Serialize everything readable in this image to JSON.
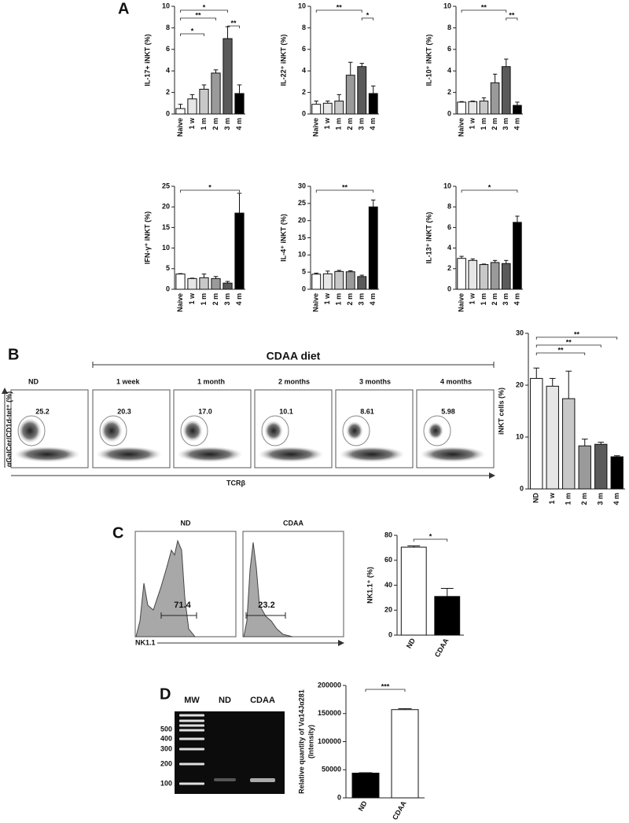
{
  "panel_labels": [
    "A",
    "B",
    "C",
    "D"
  ],
  "chart_data": [
    {
      "type": "bar",
      "y_label": "IL-17+ iNKT (%)",
      "categories": [
        "Naive",
        "1 w",
        "1 m",
        "2 m",
        "3 m",
        "4 m"
      ],
      "values": [
        0.5,
        1.4,
        2.3,
        3.8,
        7.0,
        1.9
      ],
      "errors": [
        0.4,
        0.4,
        0.4,
        0.3,
        1.1,
        0.8
      ],
      "colors": [
        "#ffffff",
        "#e6e6e6",
        "#c8c8c8",
        "#9a9a9a",
        "#5a5a5a",
        "#000000"
      ],
      "ylim": [
        0,
        10
      ],
      "yticks": [
        0,
        2,
        4,
        6,
        8,
        10
      ],
      "annotations": [
        {
          "text": "*",
          "span": [
            "Naive",
            "3 m"
          ]
        },
        {
          "text": "**",
          "span": [
            "Naive",
            "2 m"
          ]
        },
        {
          "text": "**",
          "span": [
            "3 m",
            "4 m"
          ]
        },
        {
          "text": "*",
          "span": [
            "Naive",
            "1 m"
          ]
        }
      ]
    },
    {
      "type": "bar",
      "y_label": "IL-22⁺ iNKT (%)",
      "categories": [
        "Naive",
        "1 w",
        "1 m",
        "2 m",
        "3 m",
        "4 m"
      ],
      "values": [
        0.9,
        1.0,
        1.2,
        3.6,
        4.4,
        1.9
      ],
      "errors": [
        0.3,
        0.2,
        0.6,
        1.2,
        0.3,
        0.7
      ],
      "colors": [
        "#ffffff",
        "#e6e6e6",
        "#c8c8c8",
        "#9a9a9a",
        "#5a5a5a",
        "#000000"
      ],
      "ylim": [
        0,
        10
      ],
      "yticks": [
        0,
        2,
        4,
        6,
        8,
        10
      ],
      "annotations": [
        {
          "text": "**",
          "span": [
            "Naive",
            "3 m"
          ]
        },
        {
          "text": "*",
          "span": [
            "3 m",
            "4 m"
          ]
        }
      ]
    },
    {
      "type": "bar",
      "y_label": "IL-10⁺ iNKT (%)",
      "categories": [
        "Naive",
        "1 w",
        "1 m",
        "2 m",
        "3 m",
        "4 m"
      ],
      "values": [
        1.1,
        1.15,
        1.2,
        2.9,
        4.4,
        0.8
      ],
      "errors": [
        0.05,
        0.05,
        0.3,
        0.8,
        0.7,
        0.3
      ],
      "colors": [
        "#ffffff",
        "#e6e6e6",
        "#c8c8c8",
        "#9a9a9a",
        "#5a5a5a",
        "#000000"
      ],
      "ylim": [
        0,
        10
      ],
      "yticks": [
        0,
        2,
        4,
        6,
        8,
        10
      ],
      "annotations": [
        {
          "text": "**",
          "span": [
            "Naive",
            "3 m"
          ]
        },
        {
          "text": "**",
          "span": [
            "3 m",
            "4 m"
          ]
        }
      ]
    },
    {
      "type": "bar",
      "y_label": "IFN-γ⁺ iNKT (%)",
      "categories": [
        "Naive",
        "1 w",
        "1 m",
        "2 m",
        "3 m",
        "4 m"
      ],
      "values": [
        3.7,
        2.6,
        2.8,
        2.6,
        1.5,
        18.5
      ],
      "errors": [
        0.1,
        0.1,
        0.9,
        0.5,
        0.4,
        4.8
      ],
      "colors": [
        "#ffffff",
        "#e6e6e6",
        "#c8c8c8",
        "#9a9a9a",
        "#5a5a5a",
        "#000000"
      ],
      "ylim": [
        0,
        25
      ],
      "yticks": [
        0,
        5,
        10,
        15,
        20,
        25
      ],
      "annotations": [
        {
          "text": "*",
          "span": [
            "Naive",
            "4 m"
          ]
        }
      ]
    },
    {
      "type": "bar",
      "y_label": "IL-4⁺ iNKT (%)",
      "categories": [
        "Naive",
        "1 w",
        "1 m",
        "2 m",
        "3 m",
        "4 m"
      ],
      "values": [
        4.4,
        4.5,
        5.2,
        5.1,
        3.7,
        24
      ],
      "errors": [
        0.3,
        0.8,
        0.3,
        0.3,
        0.4,
        2
      ],
      "colors": [
        "#ffffff",
        "#e6e6e6",
        "#c8c8c8",
        "#9a9a9a",
        "#5a5a5a",
        "#000000"
      ],
      "ylim": [
        0,
        30
      ],
      "yticks": [
        0,
        5,
        10,
        15,
        20,
        25,
        30
      ],
      "annotations": [
        {
          "text": "**",
          "span": [
            "Naive",
            "4 m"
          ]
        }
      ]
    },
    {
      "type": "bar",
      "y_label": "IL-13⁺ iNKT (%)",
      "categories": [
        "Naive",
        "1 w",
        "1 m",
        "2 m",
        "3 m",
        "4 m"
      ],
      "values": [
        3.0,
        2.8,
        2.4,
        2.6,
        2.5,
        6.5
      ],
      "errors": [
        0.2,
        0.15,
        0.05,
        0.2,
        0.3,
        0.6
      ],
      "colors": [
        "#ffffff",
        "#e6e6e6",
        "#c8c8c8",
        "#9a9a9a",
        "#5a5a5a",
        "#000000"
      ],
      "ylim": [
        0,
        10
      ],
      "yticks": [
        0,
        2,
        4,
        6,
        8,
        10
      ],
      "annotations": [
        {
          "text": "*",
          "span": [
            "Naive",
            "4 m"
          ]
        }
      ]
    },
    {
      "type": "bar",
      "y_label": "iNKT cells (%)",
      "categories": [
        "ND",
        "1 w",
        "1 m",
        "2 m",
        "3 m",
        "4 m"
      ],
      "values": [
        21.3,
        19.8,
        17.4,
        8.3,
        8.6,
        6.2
      ],
      "errors": [
        2,
        1.5,
        5.3,
        1.3,
        0.4,
        0.2
      ],
      "colors": [
        "#ffffff",
        "#e6e6e6",
        "#c8c8c8",
        "#9a9a9a",
        "#5a5a5a",
        "#000000"
      ],
      "ylim": [
        0,
        30
      ],
      "yticks": [
        0,
        10,
        20,
        30
      ],
      "annotations": [
        {
          "text": "**",
          "span": [
            "ND",
            "4 m"
          ]
        },
        {
          "text": "**",
          "span": [
            "ND",
            "3 m"
          ]
        },
        {
          "text": "**",
          "span": [
            "ND",
            "2 m"
          ]
        }
      ]
    },
    {
      "type": "bar",
      "y_label": "NK1.1⁺ (%)",
      "categories": [
        "ND",
        "CDAA"
      ],
      "values": [
        70.5,
        31
      ],
      "errors": [
        1,
        6.5
      ],
      "colors": [
        "#ffffff",
        "#000000"
      ],
      "ylim": [
        0,
        80
      ],
      "yticks": [
        0,
        20,
        40,
        60,
        80
      ],
      "annotations": [
        {
          "text": "*",
          "span": [
            "ND",
            "CDAA"
          ]
        }
      ]
    },
    {
      "type": "bar",
      "y_label": [
        "Relative quantity of Vα14Jα281",
        "(Intensity)"
      ],
      "categories": [
        "ND",
        "CDAA"
      ],
      "values": [
        44000,
        157000
      ],
      "errors": [
        800,
        1500
      ],
      "colors": [
        "#000000",
        "#ffffff"
      ],
      "ylim": [
        0,
        200000
      ],
      "yticks": [
        0,
        50000,
        100000,
        150000,
        200000
      ],
      "annotations": [
        {
          "text": "***",
          "span": [
            "ND",
            "CDAA"
          ]
        }
      ]
    }
  ],
  "flow_cytometry": {
    "title": "CDAA diet",
    "y_label": "αGalCer/CD1d-tet⁺ (%)",
    "x_label": "TCRβ",
    "plots": [
      {
        "label": "ND",
        "gate_value": "25.2"
      },
      {
        "label": "1 week",
        "gate_value": "20.3"
      },
      {
        "label": "1 month",
        "gate_value": "17.0"
      },
      {
        "label": "2 months",
        "gate_value": "10.1"
      },
      {
        "label": "3 months",
        "gate_value": "8.61"
      },
      {
        "label": "4 months",
        "gate_value": "5.98"
      }
    ]
  },
  "histograms": {
    "x_label": "NK1.1",
    "plots": [
      {
        "label": "ND",
        "gate_value": "71.4"
      },
      {
        "label": "CDAA",
        "gate_value": "23.2"
      }
    ]
  },
  "gel": {
    "lanes": [
      "MW",
      "ND",
      "CDAA"
    ],
    "ladder": [
      "500",
      "400",
      "300",
      "200",
      "100"
    ]
  }
}
